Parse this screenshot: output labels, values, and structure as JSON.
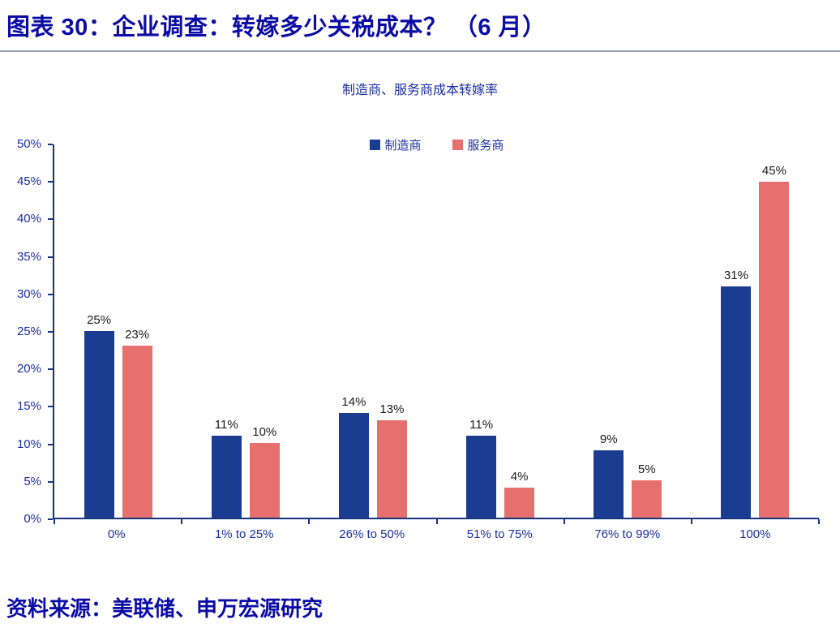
{
  "title": "图表 30：企业调查：转嫁多少关税成本？ （6 月）",
  "source": "资料来源：美联储、申万宏源研究",
  "colors": {
    "title_blue": "#0b0ba6",
    "axis_text_blue": "#1a2fa0",
    "axis_line": "#16337e",
    "bar_blue": "#1b3d91",
    "bar_red": "#e5706e",
    "value_label": "#1a1a1a"
  },
  "chart_data": {
    "type": "bar",
    "title": "制造商、服务商成本转嫁率",
    "categories": [
      "0%",
      "1% to 25%",
      "26% to 50%",
      "51% to 75%",
      "76% to 99%",
      "100%"
    ],
    "series": [
      {
        "key": "manufacturer",
        "name": "制造商",
        "color": "#1b3d91",
        "values": [
          25,
          11,
          14,
          11,
          9,
          31
        ],
        "labels": [
          "25%",
          "11%",
          "14%",
          "11%",
          "9%",
          "31%"
        ]
      },
      {
        "key": "services",
        "name": "服务商",
        "color": "#e5706e",
        "values": [
          23,
          10,
          13,
          4,
          5,
          45
        ],
        "labels": [
          "23%",
          "10%",
          "13%",
          "4%",
          "5%",
          "45%"
        ]
      }
    ],
    "ylim": [
      0,
      50
    ],
    "yticks": [
      "0%",
      "5%",
      "10%",
      "15%",
      "20%",
      "25%",
      "30%",
      "35%",
      "40%",
      "45%",
      "50%"
    ],
    "xlabel": "",
    "ylabel": "",
    "grid": false,
    "legend_position": "top-center"
  }
}
